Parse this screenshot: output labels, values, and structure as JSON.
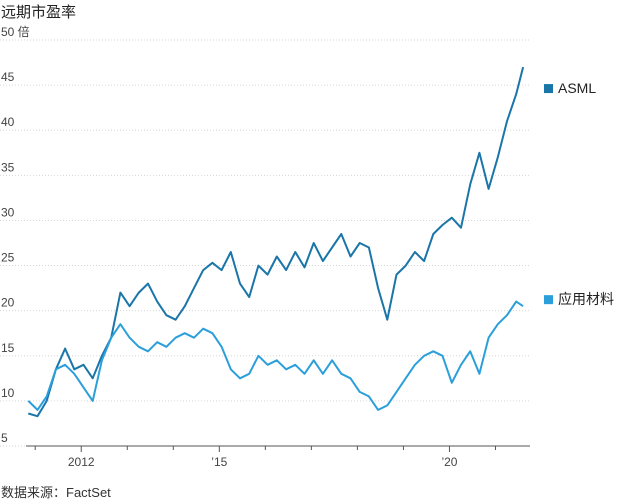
{
  "chart_data": {
    "type": "line",
    "title": "远期市盈率",
    "source": "数据来源：FactSet",
    "y_unit": "倍",
    "ylim": [
      5,
      50
    ],
    "y_ticks": [
      5,
      10,
      15,
      20,
      25,
      30,
      35,
      40,
      45,
      50
    ],
    "x_tick_labels": [
      {
        "x": 2012,
        "label": "2012"
      },
      {
        "x": 2015,
        "label": "’15"
      },
      {
        "x": 2020,
        "label": "’20"
      }
    ],
    "xlim": [
      2010.8,
      2021.75
    ],
    "grid": "horizontal",
    "legend": "right-inline",
    "x": [
      2010.85,
      2011.05,
      2011.25,
      2011.45,
      2011.65,
      2011.85,
      2012.05,
      2012.25,
      2012.45,
      2012.65,
      2012.85,
      2013.05,
      2013.25,
      2013.45,
      2013.65,
      2013.85,
      2014.05,
      2014.25,
      2014.45,
      2014.65,
      2014.85,
      2015.05,
      2015.25,
      2015.45,
      2015.65,
      2015.85,
      2016.05,
      2016.25,
      2016.45,
      2016.65,
      2016.85,
      2017.05,
      2017.25,
      2017.45,
      2017.65,
      2017.85,
      2018.05,
      2018.25,
      2018.45,
      2018.65,
      2018.85,
      2019.05,
      2019.25,
      2019.45,
      2019.65,
      2019.85,
      2020.05,
      2020.25,
      2020.45,
      2020.65,
      2020.85,
      2021.05,
      2021.25,
      2021.45,
      2021.6
    ],
    "series": [
      {
        "name": "ASML",
        "color": "#1a75a8",
        "values": [
          8.6,
          8.3,
          10.0,
          13.5,
          15.8,
          13.5,
          14.0,
          12.5,
          15.0,
          17.0,
          22.0,
          20.5,
          22.0,
          23.0,
          21.0,
          19.5,
          19.0,
          20.5,
          22.5,
          24.5,
          25.3,
          24.5,
          26.5,
          23.0,
          21.5,
          25.0,
          24.0,
          26.0,
          24.5,
          26.5,
          24.8,
          27.5,
          25.5,
          27.0,
          28.5,
          26.0,
          27.5,
          27.0,
          22.5,
          19.0,
          24.0,
          25.0,
          26.5,
          25.5,
          28.5,
          29.5,
          30.3,
          29.2,
          34.0,
          37.5,
          33.5,
          37.0,
          41.0,
          44.0,
          47.0
        ]
      },
      {
        "name": "应用材料",
        "color": "#2b9fd9",
        "values": [
          10.0,
          9.0,
          10.5,
          13.5,
          14.0,
          13.0,
          11.5,
          10.0,
          14.5,
          17.0,
          18.5,
          17.0,
          16.0,
          15.5,
          16.5,
          16.0,
          17.0,
          17.5,
          17.0,
          18.0,
          17.5,
          16.0,
          13.5,
          12.5,
          13.0,
          15.0,
          14.0,
          14.5,
          13.5,
          14.0,
          13.0,
          14.5,
          13.0,
          14.5,
          13.0,
          12.5,
          11.0,
          10.5,
          9.0,
          9.5,
          11.0,
          12.5,
          14.0,
          15.0,
          15.5,
          15.0,
          12.0,
          14.0,
          15.5,
          13.0,
          17.0,
          18.5,
          19.5,
          21.0,
          20.5
        ]
      }
    ]
  }
}
